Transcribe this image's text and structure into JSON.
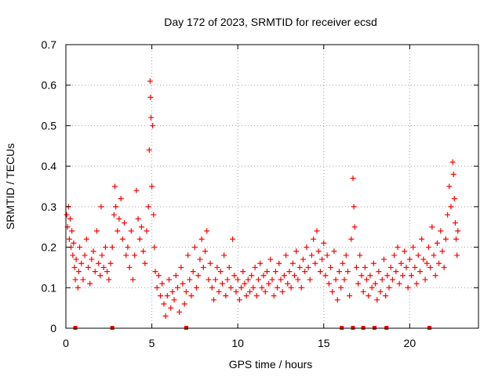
{
  "chart_data": {
    "type": "scatter",
    "title": "Day 172 of 2023, SRMTID for receiver ecsd",
    "xlabel": "GPS time / hours",
    "ylabel": "SRMTID / TECUs",
    "xlim": [
      0,
      24
    ],
    "ylim": [
      0,
      0.7
    ],
    "xticks": [
      0,
      5,
      10,
      15,
      20
    ],
    "yticks": [
      0,
      0.1,
      0.2,
      0.3,
      0.4,
      0.5,
      0.6,
      0.7
    ],
    "xtick_labels": [
      "0",
      "5",
      "10",
      "15",
      "20"
    ],
    "ytick_labels": [
      "0",
      "0.1",
      "0.2",
      "0.3",
      "0.4",
      "0.5",
      "0.6",
      "0.7"
    ],
    "grid": true,
    "marker": "+",
    "color": "#ff0000",
    "series": [
      {
        "name": "SRMTID",
        "points": [
          [
            0.05,
            0.28
          ],
          [
            0.1,
            0.25
          ],
          [
            0.15,
            0.3
          ],
          [
            0.2,
            0.22
          ],
          [
            0.25,
            0.27
          ],
          [
            0.3,
            0.2
          ],
          [
            0.35,
            0.24
          ],
          [
            0.4,
            0.18
          ],
          [
            0.45,
            0.21
          ],
          [
            0.5,
            0.15
          ],
          [
            0.55,
            0.12
          ],
          [
            0.6,
            0.17
          ],
          [
            0.7,
            0.1
          ],
          [
            0.75,
            0.14
          ],
          [
            0.8,
            0.2
          ],
          [
            0.9,
            0.16
          ],
          [
            1.0,
            0.12
          ],
          [
            1.1,
            0.18
          ],
          [
            1.2,
            0.22
          ],
          [
            1.3,
            0.15
          ],
          [
            1.4,
            0.11
          ],
          [
            1.5,
            0.17
          ],
          [
            1.6,
            0.19
          ],
          [
            1.7,
            0.14
          ],
          [
            1.8,
            0.24
          ],
          [
            1.9,
            0.16
          ],
          [
            2.0,
            0.13
          ],
          [
            2.05,
            0.3
          ],
          [
            2.1,
            0.18
          ],
          [
            2.2,
            0.15
          ],
          [
            2.3,
            0.2
          ],
          [
            2.4,
            0.14
          ],
          [
            2.5,
            0.12
          ],
          [
            2.6,
            0.16
          ],
          [
            2.7,
            0.2
          ],
          [
            2.8,
            0.28
          ],
          [
            2.85,
            0.35
          ],
          [
            2.9,
            0.3
          ],
          [
            3.0,
            0.24
          ],
          [
            3.1,
            0.27
          ],
          [
            3.2,
            0.32
          ],
          [
            3.3,
            0.22
          ],
          [
            3.4,
            0.26
          ],
          [
            3.5,
            0.18
          ],
          [
            3.6,
            0.2
          ],
          [
            3.7,
            0.15
          ],
          [
            3.8,
            0.24
          ],
          [
            3.9,
            0.12
          ],
          [
            4.0,
            0.18
          ],
          [
            4.1,
            0.34
          ],
          [
            4.2,
            0.27
          ],
          [
            4.3,
            0.22
          ],
          [
            4.4,
            0.25
          ],
          [
            4.5,
            0.19
          ],
          [
            4.6,
            0.16
          ],
          [
            4.7,
            0.24
          ],
          [
            4.8,
            0.3
          ],
          [
            4.85,
            0.44
          ],
          [
            4.9,
            0.61
          ],
          [
            4.92,
            0.57
          ],
          [
            4.95,
            0.52
          ],
          [
            5.0,
            0.35
          ],
          [
            5.05,
            0.5
          ],
          [
            5.1,
            0.28
          ],
          [
            5.15,
            0.2
          ],
          [
            5.2,
            0.14
          ],
          [
            5.3,
            0.1
          ],
          [
            5.4,
            0.13
          ],
          [
            5.5,
            0.08
          ],
          [
            5.6,
            0.11
          ],
          [
            5.7,
            0.06
          ],
          [
            5.8,
            0.03
          ],
          [
            5.9,
            0.08
          ],
          [
            6.0,
            0.12
          ],
          [
            6.1,
            0.05
          ],
          [
            6.2,
            0.09
          ],
          [
            6.3,
            0.07
          ],
          [
            6.4,
            0.13
          ],
          [
            6.5,
            0.1
          ],
          [
            6.6,
            0.04
          ],
          [
            6.7,
            0.15
          ],
          [
            6.8,
            0.11
          ],
          [
            6.9,
            0.06
          ],
          [
            7.0,
            0.09
          ],
          [
            7.1,
            0.18
          ],
          [
            7.2,
            0.12
          ],
          [
            7.3,
            0.08
          ],
          [
            7.4,
            0.14
          ],
          [
            7.5,
            0.2
          ],
          [
            7.6,
            0.1
          ],
          [
            7.7,
            0.13
          ],
          [
            7.8,
            0.17
          ],
          [
            7.9,
            0.22
          ],
          [
            8.0,
            0.15
          ],
          [
            8.1,
            0.19
          ],
          [
            8.2,
            0.24
          ],
          [
            8.3,
            0.12
          ],
          [
            8.4,
            0.16
          ],
          [
            8.5,
            0.1
          ],
          [
            8.6,
            0.07
          ],
          [
            8.7,
            0.12
          ],
          [
            8.8,
            0.15
          ],
          [
            8.9,
            0.09
          ],
          [
            9.0,
            0.14
          ],
          [
            9.1,
            0.11
          ],
          [
            9.2,
            0.18
          ],
          [
            9.3,
            0.08
          ],
          [
            9.4,
            0.12
          ],
          [
            9.5,
            0.15
          ],
          [
            9.6,
            0.1
          ],
          [
            9.7,
            0.22
          ],
          [
            9.8,
            0.13
          ],
          [
            9.9,
            0.09
          ],
          [
            10.0,
            0.12
          ],
          [
            10.1,
            0.07
          ],
          [
            10.2,
            0.1
          ],
          [
            10.3,
            0.14
          ],
          [
            10.4,
            0.11
          ],
          [
            10.5,
            0.08
          ],
          [
            10.6,
            0.12
          ],
          [
            10.7,
            0.09
          ],
          [
            10.8,
            0.13
          ],
          [
            10.9,
            0.1
          ],
          [
            11.0,
            0.15
          ],
          [
            11.1,
            0.08
          ],
          [
            11.2,
            0.12
          ],
          [
            11.3,
            0.16
          ],
          [
            11.4,
            0.1
          ],
          [
            11.5,
            0.13
          ],
          [
            11.6,
            0.09
          ],
          [
            11.7,
            0.14
          ],
          [
            11.8,
            0.11
          ],
          [
            11.9,
            0.17
          ],
          [
            12.0,
            0.12
          ],
          [
            12.1,
            0.08
          ],
          [
            12.2,
            0.14
          ],
          [
            12.3,
            0.1
          ],
          [
            12.4,
            0.16
          ],
          [
            12.5,
            0.12
          ],
          [
            12.6,
            0.09
          ],
          [
            12.7,
            0.13
          ],
          [
            12.8,
            0.18
          ],
          [
            12.9,
            0.11
          ],
          [
            13.0,
            0.14
          ],
          [
            13.1,
            0.1
          ],
          [
            13.2,
            0.16
          ],
          [
            13.3,
            0.13
          ],
          [
            13.4,
            0.19
          ],
          [
            13.5,
            0.12
          ],
          [
            13.6,
            0.15
          ],
          [
            13.7,
            0.1
          ],
          [
            13.8,
            0.17
          ],
          [
            13.9,
            0.14
          ],
          [
            14.0,
            0.2
          ],
          [
            14.1,
            0.15
          ],
          [
            14.2,
            0.12
          ],
          [
            14.3,
            0.18
          ],
          [
            14.4,
            0.22
          ],
          [
            14.5,
            0.16
          ],
          [
            14.6,
            0.24
          ],
          [
            14.7,
            0.19
          ],
          [
            14.8,
            0.14
          ],
          [
            14.9,
            0.17
          ],
          [
            15.0,
            0.21
          ],
          [
            15.1,
            0.13
          ],
          [
            15.2,
            0.18
          ],
          [
            15.3,
            0.11
          ],
          [
            15.4,
            0.15
          ],
          [
            15.5,
            0.09
          ],
          [
            15.6,
            0.19
          ],
          [
            15.7,
            0.12
          ],
          [
            15.8,
            0.07
          ],
          [
            15.9,
            0.14
          ],
          [
            16.0,
            0.1
          ],
          [
            16.1,
            0.16
          ],
          [
            16.2,
            0.12
          ],
          [
            16.3,
            0.18
          ],
          [
            16.4,
            0.14
          ],
          [
            16.5,
            0.08
          ],
          [
            16.6,
            0.22
          ],
          [
            16.7,
            0.37
          ],
          [
            16.75,
            0.3
          ],
          [
            16.8,
            0.25
          ],
          [
            16.9,
            0.15
          ],
          [
            17.0,
            0.11
          ],
          [
            17.1,
            0.18
          ],
          [
            17.2,
            0.13
          ],
          [
            17.3,
            0.09
          ],
          [
            17.4,
            0.15
          ],
          [
            17.5,
            0.12
          ],
          [
            17.6,
            0.08
          ],
          [
            17.7,
            0.13
          ],
          [
            17.8,
            0.1
          ],
          [
            17.9,
            0.16
          ],
          [
            18.0,
            0.11
          ],
          [
            18.1,
            0.07
          ],
          [
            18.2,
            0.14
          ],
          [
            18.3,
            0.09
          ],
          [
            18.4,
            0.12
          ],
          [
            18.5,
            0.17
          ],
          [
            18.6,
            0.08
          ],
          [
            18.7,
            0.13
          ],
          [
            18.8,
            0.1
          ],
          [
            18.9,
            0.15
          ],
          [
            19.0,
            0.12
          ],
          [
            19.1,
            0.18
          ],
          [
            19.2,
            0.14
          ],
          [
            19.3,
            0.2
          ],
          [
            19.4,
            0.11
          ],
          [
            19.5,
            0.16
          ],
          [
            19.6,
            0.13
          ],
          [
            19.7,
            0.19
          ],
          [
            19.8,
            0.15
          ],
          [
            19.9,
            0.1
          ],
          [
            20.0,
            0.17
          ],
          [
            20.1,
            0.13
          ],
          [
            20.2,
            0.2
          ],
          [
            20.3,
            0.15
          ],
          [
            20.4,
            0.11
          ],
          [
            20.5,
            0.18
          ],
          [
            20.6,
            0.14
          ],
          [
            20.7,
            0.22
          ],
          [
            20.8,
            0.17
          ],
          [
            20.9,
            0.12
          ],
          [
            21.0,
            0.16
          ],
          [
            21.1,
            0.2
          ],
          [
            21.2,
            0.15
          ],
          [
            21.3,
            0.25
          ],
          [
            21.4,
            0.18
          ],
          [
            21.5,
            0.13
          ],
          [
            21.6,
            0.21
          ],
          [
            21.7,
            0.16
          ],
          [
            21.8,
            0.24
          ],
          [
            21.9,
            0.19
          ],
          [
            22.0,
            0.15
          ],
          [
            22.1,
            0.22
          ],
          [
            22.2,
            0.28
          ],
          [
            22.3,
            0.35
          ],
          [
            22.4,
            0.3
          ],
          [
            22.5,
            0.41
          ],
          [
            22.55,
            0.38
          ],
          [
            22.6,
            0.32
          ],
          [
            22.65,
            0.26
          ],
          [
            22.7,
            0.22
          ],
          [
            22.75,
            0.18
          ],
          [
            22.8,
            0.24
          ]
        ]
      }
    ],
    "gap_markers_x": [
      0.55,
      2.7,
      7.0,
      16.05,
      16.7,
      17.3,
      17.95,
      18.65,
      21.15
    ]
  }
}
